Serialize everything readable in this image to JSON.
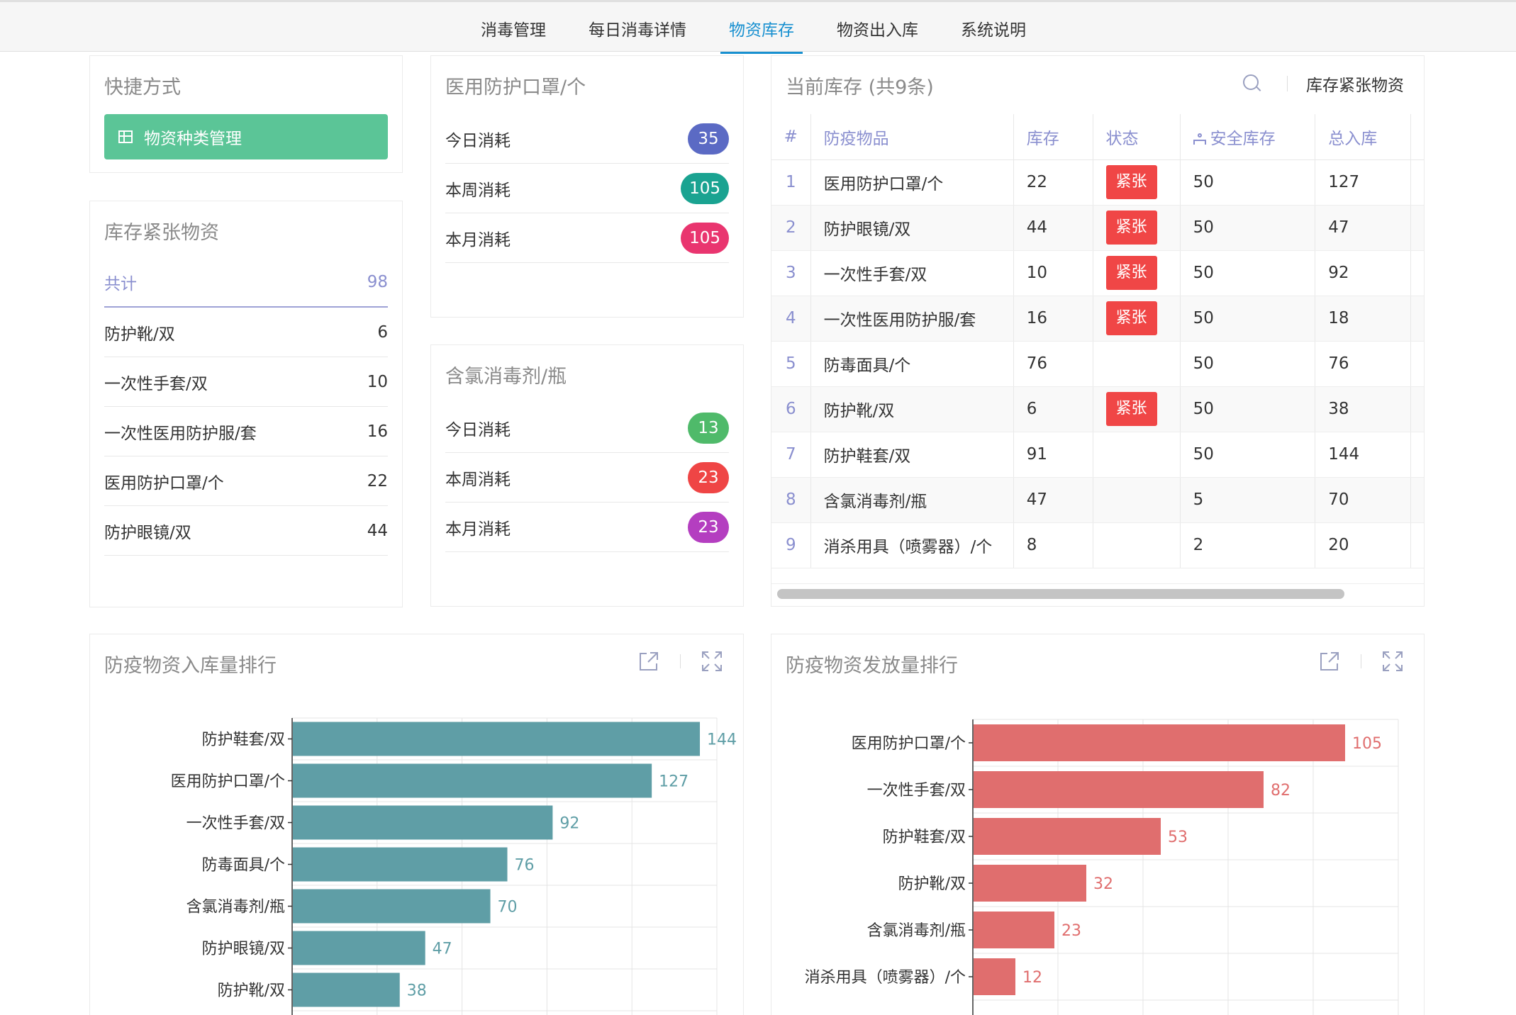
{
  "nav": {
    "items": [
      {
        "label": "消毒管理"
      },
      {
        "label": "每日消毒详情"
      },
      {
        "label": "物资库存"
      },
      {
        "label": "物资出入库"
      },
      {
        "label": "系统说明"
      }
    ],
    "active_index": 2
  },
  "quick": {
    "title": "快捷方式",
    "button_label": "物资种类管理",
    "button_color": "#5bc597"
  },
  "shortage": {
    "title": "库存紧张物资",
    "total_label": "共计",
    "total_value": "98",
    "items": [
      {
        "name": "防护靴/双",
        "value": "6"
      },
      {
        "name": "一次性手套/双",
        "value": "10"
      },
      {
        "name": "一次性医用防护服/套",
        "value": "16"
      },
      {
        "name": "医用防护口罩/个",
        "value": "22"
      },
      {
        "name": "防护眼镜/双",
        "value": "44"
      }
    ]
  },
  "mask_card": {
    "title": "医用防护口罩/个",
    "rows": [
      {
        "label": "今日消耗",
        "value": "35",
        "color": "#5b6ac4"
      },
      {
        "label": "本周消耗",
        "value": "105",
        "color": "#1aa391"
      },
      {
        "label": "本月消耗",
        "value": "105",
        "color": "#e9356f"
      }
    ]
  },
  "chlorine_card": {
    "title": "含氯消毒剂/瓶",
    "rows": [
      {
        "label": "今日消耗",
        "value": "13",
        "color": "#4fba6a"
      },
      {
        "label": "本周消耗",
        "value": "23",
        "color": "#ef4545"
      },
      {
        "label": "本月消耗",
        "value": "23",
        "color": "#b43ec0"
      }
    ]
  },
  "inventory": {
    "title": "当前库存 (共9条)",
    "shortage_link": "库存紧张物资",
    "columns": [
      "#",
      "防疫物品",
      "库存",
      "状态",
      "安全库存",
      "总入库"
    ],
    "urgent_label": "紧张",
    "urgent_color": "#f04646",
    "rows": [
      {
        "idx": "1",
        "name": "医用防护口罩/个",
        "stock": "22",
        "urgent": true,
        "safe": "50",
        "total": "127"
      },
      {
        "idx": "2",
        "name": "防护眼镜/双",
        "stock": "44",
        "urgent": true,
        "safe": "50",
        "total": "47"
      },
      {
        "idx": "3",
        "name": "一次性手套/双",
        "stock": "10",
        "urgent": true,
        "safe": "50",
        "total": "92"
      },
      {
        "idx": "4",
        "name": "一次性医用防护服/套",
        "stock": "16",
        "urgent": true,
        "safe": "50",
        "total": "18"
      },
      {
        "idx": "5",
        "name": "防毒面具/个",
        "stock": "76",
        "urgent": false,
        "safe": "50",
        "total": "76"
      },
      {
        "idx": "6",
        "name": "防护靴/双",
        "stock": "6",
        "urgent": true,
        "safe": "50",
        "total": "38"
      },
      {
        "idx": "7",
        "name": "防护鞋套/双",
        "stock": "91",
        "urgent": false,
        "safe": "50",
        "total": "144"
      },
      {
        "idx": "8",
        "name": "含氯消毒剂/瓶",
        "stock": "47",
        "urgent": false,
        "safe": "5",
        "total": "70"
      },
      {
        "idx": "9",
        "name": "消杀用具（喷雾器）/个",
        "stock": "8",
        "urgent": false,
        "safe": "2",
        "total": "20"
      }
    ]
  },
  "chart_data": [
    {
      "type": "bar",
      "orientation": "horizontal",
      "title": "防疫物资入库量排行",
      "categories": [
        "防护鞋套/双",
        "医用防护口罩/个",
        "一次性手套/双",
        "防毒面具/个",
        "含氯消毒剂/瓶",
        "防护眼镜/双",
        "防护靴/双"
      ],
      "values": [
        144,
        127,
        92,
        76,
        70,
        47,
        38
      ],
      "xlim": [
        0,
        150
      ],
      "grid": true,
      "color": "#5f9ea6"
    },
    {
      "type": "bar",
      "orientation": "horizontal",
      "title": "防疫物资发放量排行",
      "categories": [
        "医用防护口罩/个",
        "一次性手套/双",
        "防护鞋套/双",
        "防护靴/双",
        "含氯消毒剂/瓶",
        "消杀用具（喷雾器）/个"
      ],
      "values": [
        105,
        82,
        53,
        32,
        23,
        12
      ],
      "xlim": [
        0,
        120
      ],
      "grid": true,
      "color": "#e06e6e"
    }
  ]
}
